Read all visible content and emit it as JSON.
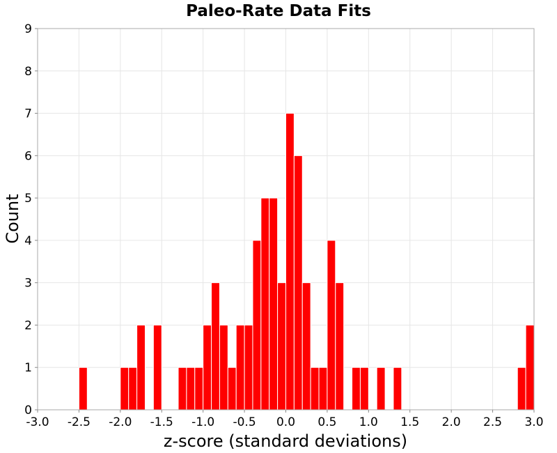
{
  "chart_data": {
    "type": "bar",
    "title": "Paleo-Rate Data Fits",
    "xlabel": "z-score (standard deviations)",
    "ylabel": "Count",
    "xlim": [
      -3.0,
      3.0
    ],
    "ylim": [
      0,
      9
    ],
    "bin_width": 0.1,
    "x_ticks": [
      "-3.0",
      "-2.5",
      "-2.0",
      "-1.5",
      "-1.0",
      "-0.5",
      "0.0",
      "0.5",
      "1.0",
      "1.5",
      "2.0",
      "2.5",
      "3.0"
    ],
    "x_tick_values": [
      -3.0,
      -2.5,
      -2.0,
      -1.5,
      -1.0,
      -0.5,
      0.0,
      0.5,
      1.0,
      1.5,
      2.0,
      2.5,
      3.0
    ],
    "y_ticks": [
      "0",
      "1",
      "2",
      "3",
      "4",
      "5",
      "6",
      "7",
      "8",
      "9"
    ],
    "y_tick_values": [
      0,
      1,
      2,
      3,
      4,
      5,
      6,
      7,
      8,
      9
    ],
    "grid": true,
    "bar_color": "#ff0000",
    "bins": [
      {
        "x0": -2.5,
        "count": 1
      },
      {
        "x0": -2.0,
        "count": 1
      },
      {
        "x0": -1.9,
        "count": 1
      },
      {
        "x0": -1.8,
        "count": 2
      },
      {
        "x0": -1.6,
        "count": 2
      },
      {
        "x0": -1.3,
        "count": 1
      },
      {
        "x0": -1.2,
        "count": 1
      },
      {
        "x0": -1.1,
        "count": 1
      },
      {
        "x0": -1.0,
        "count": 2
      },
      {
        "x0": -0.9,
        "count": 3
      },
      {
        "x0": -0.8,
        "count": 2
      },
      {
        "x0": -0.7,
        "count": 1
      },
      {
        "x0": -0.6,
        "count": 2
      },
      {
        "x0": -0.5,
        "count": 2
      },
      {
        "x0": -0.4,
        "count": 4
      },
      {
        "x0": -0.3,
        "count": 5
      },
      {
        "x0": -0.2,
        "count": 5
      },
      {
        "x0": -0.1,
        "count": 3
      },
      {
        "x0": 0.0,
        "count": 7
      },
      {
        "x0": 0.1,
        "count": 6
      },
      {
        "x0": 0.2,
        "count": 3
      },
      {
        "x0": 0.3,
        "count": 1
      },
      {
        "x0": 0.4,
        "count": 1
      },
      {
        "x0": 0.5,
        "count": 4
      },
      {
        "x0": 0.6,
        "count": 3
      },
      {
        "x0": 0.8,
        "count": 1
      },
      {
        "x0": 0.9,
        "count": 1
      },
      {
        "x0": 1.1,
        "count": 1
      },
      {
        "x0": 1.3,
        "count": 1
      },
      {
        "x0": 2.8,
        "count": 1
      },
      {
        "x0": 2.9,
        "count": 2
      }
    ]
  }
}
